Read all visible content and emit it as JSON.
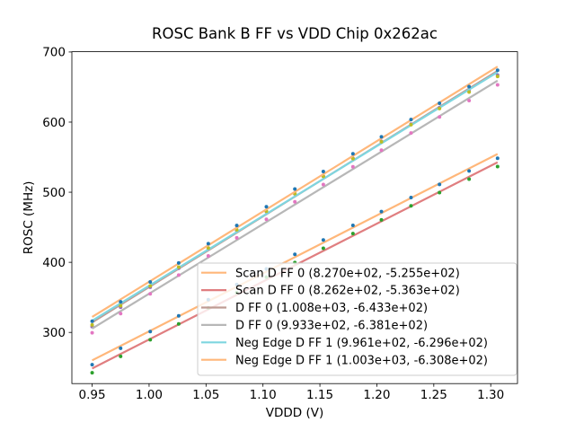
{
  "chart_data": {
    "type": "scatter_with_linear_fits",
    "title": "ROSC Bank B FF vs VDD Chip 0x262ac",
    "xlabel": "VDDD (V)",
    "ylabel": "ROSC (MHz)",
    "grid": false,
    "legend_location": "lower right",
    "xlim": [
      0.9322,
      1.3235
    ],
    "ylim": [
      227.0,
      700.4
    ],
    "xticks": [
      "0.95",
      "1.00",
      "1.05",
      "1.10",
      "1.15",
      "1.20",
      "1.25",
      "1.30"
    ],
    "yticks": [
      "300",
      "400",
      "500",
      "600",
      "700"
    ],
    "fit_line_x_range": [
      0.95,
      1.306
    ],
    "x": [
      0.95,
      0.975,
      1.001,
      1.026,
      1.052,
      1.077,
      1.103,
      1.128,
      1.153,
      1.179,
      1.204,
      1.23,
      1.255,
      1.281,
      1.306
    ],
    "series": [
      {
        "label": "Scan D FF 0 (8.270e+02, -5.255e+02)",
        "fit_slope": 827.0,
        "fit_intercept": -525.5,
        "line_color": "#ffb77a",
        "marker_color": "#1f77b4",
        "y": [
          254.0,
          277.3,
          301.2,
          323.7,
          346.7,
          368.3,
          390.5,
          411.4,
          431.8,
          452.7,
          472.4,
          492.4,
          511.2,
          530.4,
          548.4
        ]
      },
      {
        "label": "Scan D FF 0 (8.262e+02, -5.363e+02)",
        "fit_slope": 826.2,
        "fit_intercept": -536.3,
        "line_color": "#e07e80",
        "marker_color": "#2ca02c",
        "y": [
          242.5,
          265.8,
          289.6,
          312.1,
          335.0,
          356.7,
          378.8,
          399.7,
          420.1,
          441.0,
          460.6,
          480.6,
          499.4,
          518.6,
          536.6
        ]
      },
      {
        "label": "D FF 0 (1.008e+03, -6.433e+02)",
        "fit_slope": 1008.0,
        "fit_intercept": -643.3,
        "line_color": "#bf9c94",
        "marker_color": "#9467bd",
        "y": [
          308.2,
          336.0,
          364.5,
          391.5,
          419.2,
          445.5,
          472.3,
          497.7,
          522.7,
          548.2,
          572.4,
          597.1,
          620.5,
          644.4,
          667.0
        ]
      },
      {
        "label": "D FF 0 (9.933e+02, -6.381e+02)",
        "fit_slope": 993.3,
        "fit_intercept": -638.1,
        "line_color": "#b7b7b7",
        "marker_color": "#e377c2",
        "y": [
          299.4,
          326.9,
          355.0,
          381.7,
          409.1,
          434.9,
          461.3,
          486.3,
          511.0,
          536.2,
          559.9,
          584.4,
          607.3,
          630.8,
          653.1
        ]
      },
      {
        "label": "Neg Edge D FF 1 (9.961e+02, -6.296e+02)",
        "fit_slope": 996.1,
        "fit_intercept": -629.6,
        "line_color": "#7ed6e0",
        "marker_color": "#bcbd22",
        "y": [
          310.6,
          338.1,
          366.3,
          393.1,
          420.5,
          446.4,
          472.9,
          498.0,
          522.7,
          548.0,
          571.9,
          596.3,
          619.3,
          642.9,
          665.2
        ]
      },
      {
        "label": "Neg Edge D FF 1 (1.003e+03, -6.308e+02)",
        "fit_slope": 1003.0,
        "fit_intercept": -630.8,
        "line_color": "#ffb77a",
        "marker_color": "#1f77b4",
        "y": [
          316.0,
          343.6,
          372.0,
          399.0,
          426.6,
          452.6,
          479.3,
          504.6,
          529.5,
          554.9,
          579.0,
          603.6,
          626.8,
          650.5,
          674.0
        ]
      }
    ],
    "style": {
      "spine_color": "#000000",
      "legend_border_color": "#cccccc",
      "legend_background": "rgba(255,255,255,0.8)"
    }
  }
}
